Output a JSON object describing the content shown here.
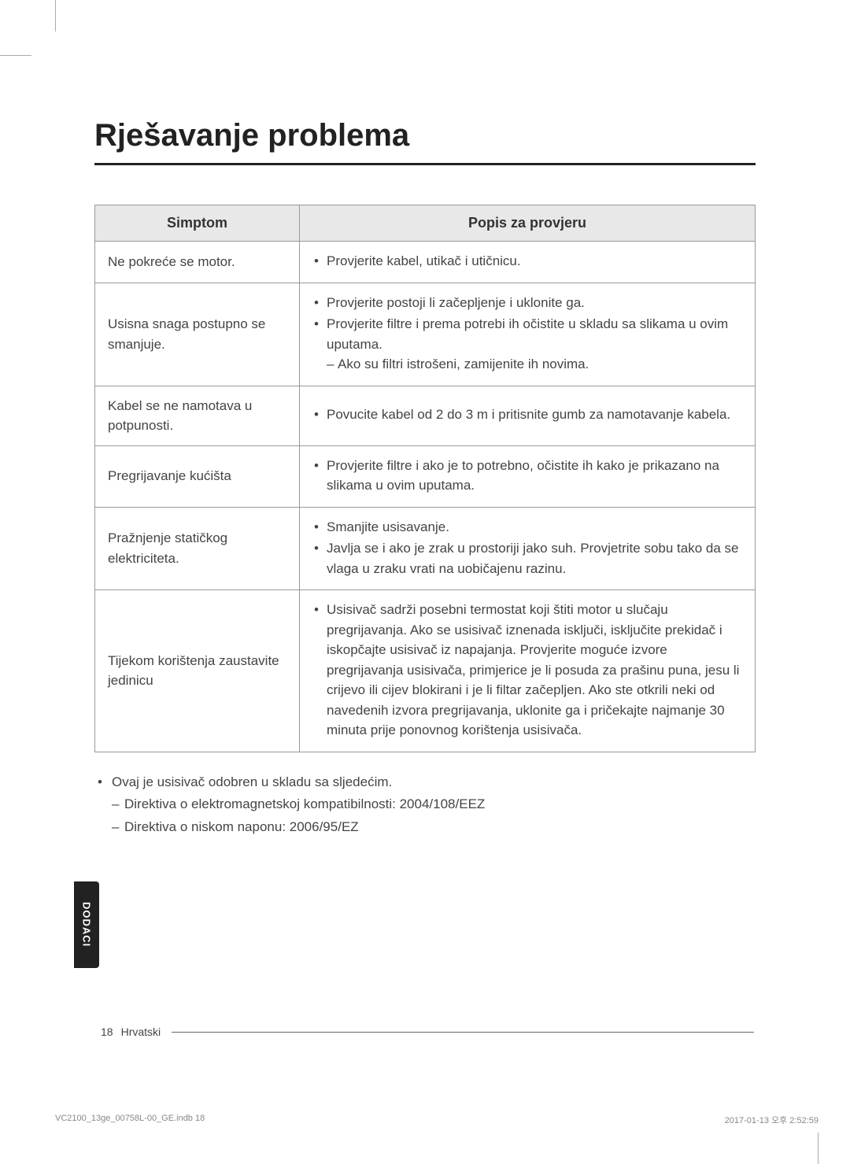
{
  "title": "Rješavanje problema",
  "table": {
    "header_col1": "Simptom",
    "header_col2": "Popis za provjeru",
    "rows": [
      {
        "symptom": "Ne pokreće se motor.",
        "items": [
          "Provjerite kabel, utikač i utičnicu."
        ],
        "sub": []
      },
      {
        "symptom": "Usisna snaga postupno se smanjuje.",
        "items": [
          "Provjerite postoji li začepljenje i uklonite ga.",
          "Provjerite filtre i prema potrebi ih očistite u skladu sa slikama u ovim uputama."
        ],
        "sub": [
          "Ako su filtri istrošeni, zamijenite ih novima."
        ]
      },
      {
        "symptom": "Kabel se ne namotava u potpunosti.",
        "items": [
          "Povucite kabel od 2 do 3 m i pritisnite gumb za namotavanje kabela."
        ],
        "sub": []
      },
      {
        "symptom": "Pregrijavanje kućišta",
        "items": [
          "Provjerite filtre i ako je to potrebno, očistite ih kako je prikazano na slikama u ovim uputama."
        ],
        "sub": []
      },
      {
        "symptom": "Pražnjenje statičkog elektriciteta.",
        "items": [
          "Smanjite usisavanje.",
          "Javlja se i ako je zrak u prostoriji jako suh. Provjetrite sobu tako da se vlaga u zraku vrati na uobičajenu razinu."
        ],
        "sub": []
      },
      {
        "symptom": "Tijekom korištenja zaustavite jedinicu",
        "items": [
          "Usisivač sadrži posebni termostat koji štiti motor u slučaju pregrijavanja. Ako se usisivač iznenada isključi, isključite prekidač i iskopčajte usisivač iz napajanja. Provjerite moguće izvore pregrijavanja usisivača, primjerice je li posuda za prašinu puna, jesu li crijevo ili cijev blokirani i je li filtar začepljen. Ako ste otkrili neki od navedenih izvora pregrijavanja, uklonite ga i pričekajte najmanje 30 minuta prije ponovnog korištenja usisivača."
        ],
        "sub": []
      }
    ]
  },
  "approval": {
    "intro": "Ovaj je usisivač odobren u skladu sa sljedećim.",
    "items": [
      "Direktiva o elektromagnetskoj kompatibilnosti: 2004/108/EEZ",
      "Direktiva o niskom naponu: 2006/95/EZ"
    ]
  },
  "sidetab": "DODACI",
  "footer": {
    "page_num": "18",
    "lang": "Hrvatski"
  },
  "print_meta": {
    "file": "VC2100_13ge_00758L-00_GE.indb   18",
    "timestamp": "2017-01-13   오후 2:52:59"
  },
  "styling": {
    "title_fontsize": 40,
    "body_fontsize": 17,
    "header_bg": "#e8e8e8",
    "border_color": "#999999",
    "text_color": "#444444",
    "sidetab_bg": "#222222",
    "sidetab_color": "#ffffff"
  }
}
